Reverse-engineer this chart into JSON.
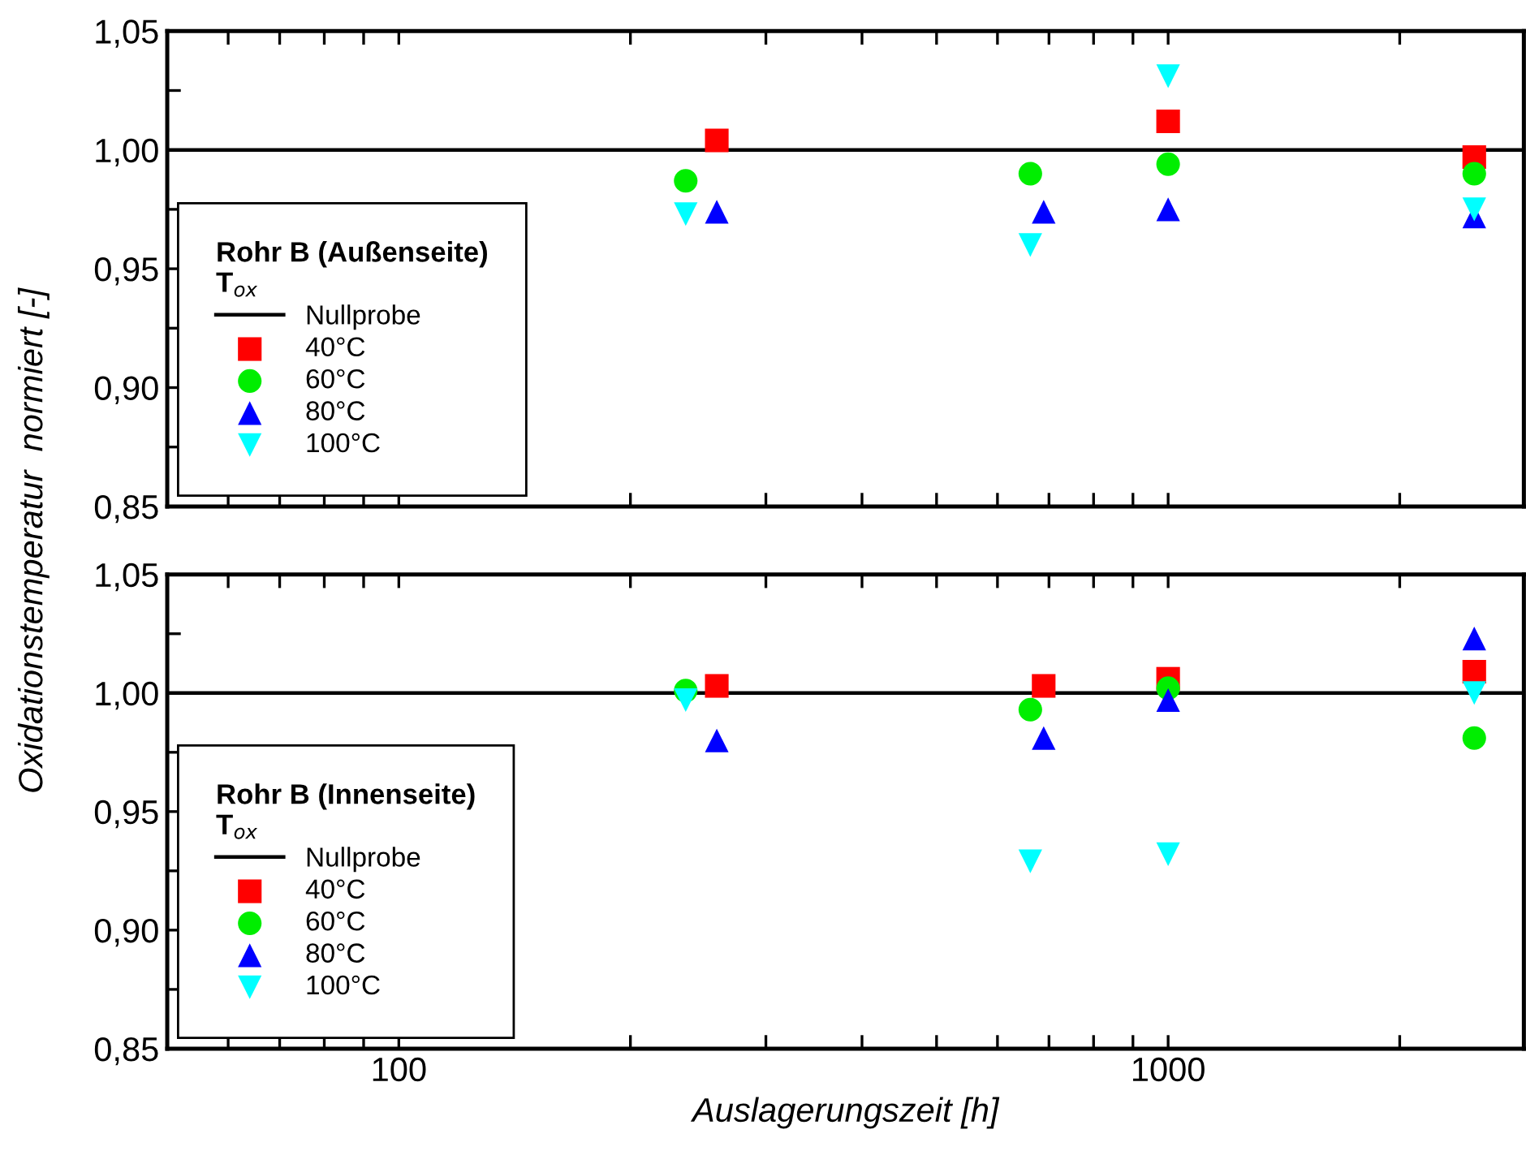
{
  "chart_data": [
    {
      "type": "scatter",
      "ylabel": "Oxidationstemperatur  normiert [-]",
      "legend_title": "Rohr B (Außenseite)\nT$_{ox}$",
      "legend": "bottom left",
      "log": "x",
      "grid": false,
      "tick_labels": "y",
      "xlim": [
        50,
        2900
      ],
      "xticks": [
        {
          "value": 60,
          "label": null
        },
        {
          "value": 70,
          "label": null
        },
        {
          "value": 80,
          "label": null
        },
        {
          "value": 90,
          "label": null
        },
        100,
        {
          "value": 200,
          "label": null
        },
        {
          "value": 300,
          "label": null
        },
        {
          "value": 400,
          "label": null
        },
        {
          "value": 500,
          "label": null
        },
        {
          "value": 600,
          "label": null
        },
        {
          "value": 700,
          "label": null
        },
        {
          "value": 800,
          "label": null
        },
        {
          "value": 900,
          "label": null
        },
        1000,
        {
          "value": 2000,
          "label": null
        }
      ],
      "ylim": [
        0.85,
        1.05
      ],
      "yticks": [
        {
          "value": 0.85,
          "label": "0,85"
        },
        {
          "value": 0.875,
          "label": null
        },
        {
          "value": 0.9,
          "label": "0,90"
        },
        {
          "value": 0.925,
          "label": null
        },
        {
          "value": 0.95,
          "label": "0,95"
        },
        {
          "value": 0.975,
          "label": null
        },
        {
          "value": 1.0,
          "label": "1,00"
        },
        {
          "value": 1.025,
          "label": null
        },
        {
          "value": 1.05,
          "label": "1,05"
        }
      ],
      "ref_lines": [
        {
          "axis": "y",
          "value": 1.0,
          "label": "Nullprobe",
          "color": "#000000",
          "line_style": "solid"
        }
      ],
      "series": [
        {
          "name": "40°C",
          "color": "#ff0000",
          "marker": "square",
          "x": [
            259,
            1000,
            2500
          ],
          "values": [
            1.004,
            1.012,
            0.997
          ]
        },
        {
          "name": "60°C",
          "color": "#00ee00",
          "marker": "circle",
          "x": [
            236,
            662,
            1000,
            2500
          ],
          "values": [
            0.987,
            0.99,
            0.994,
            0.99
          ]
        },
        {
          "name": "80°C",
          "color": "#0000ff",
          "marker": "triangle",
          "x": [
            259,
            689,
            1000,
            2500
          ],
          "values": [
            0.974,
            0.974,
            0.975,
            0.972
          ]
        },
        {
          "name": "100°C",
          "color": "#00ffff",
          "marker": "triangle_down",
          "x": [
            236,
            662,
            1000,
            2500
          ],
          "values": [
            0.973,
            0.96,
            1.031,
            0.975
          ]
        }
      ]
    },
    {
      "type": "scatter",
      "xlabel": "Auslagerungszeit [h]",
      "legend_title": "Rohr B (Innenseite)\nT$_{ox}$",
      "legend": "bottom left",
      "log": "x",
      "grid": false,
      "xlim": [
        50,
        2900
      ],
      "xticks": [
        {
          "value": 60,
          "label": null
        },
        {
          "value": 70,
          "label": null
        },
        {
          "value": 80,
          "label": null
        },
        {
          "value": 90,
          "label": null
        },
        100,
        {
          "value": 200,
          "label": null
        },
        {
          "value": 300,
          "label": null
        },
        {
          "value": 400,
          "label": null
        },
        {
          "value": 500,
          "label": null
        },
        {
          "value": 600,
          "label": null
        },
        {
          "value": 700,
          "label": null
        },
        {
          "value": 800,
          "label": null
        },
        {
          "value": 900,
          "label": null
        },
        1000,
        {
          "value": 2000,
          "label": null
        }
      ],
      "ylim": [
        0.85,
        1.05
      ],
      "yticks": [
        {
          "value": 0.85,
          "label": "0,85"
        },
        {
          "value": 0.875,
          "label": null
        },
        {
          "value": 0.9,
          "label": "0,90"
        },
        {
          "value": 0.925,
          "label": null
        },
        {
          "value": 0.95,
          "label": "0,95"
        },
        {
          "value": 0.975,
          "label": null
        },
        {
          "value": 1.0,
          "label": "1,00"
        },
        {
          "value": 1.025,
          "label": null
        },
        {
          "value": 1.05,
          "label": "1,05"
        }
      ],
      "ref_lines": [
        {
          "axis": "y",
          "value": 1.0,
          "label": "Nullprobe",
          "color": "#000000",
          "line_style": "solid"
        }
      ],
      "series": [
        {
          "name": "40°C",
          "color": "#ff0000",
          "marker": "square",
          "x": [
            259,
            689,
            1000,
            2500
          ],
          "values": [
            1.003,
            1.003,
            1.006,
            1.009
          ]
        },
        {
          "name": "60°C",
          "color": "#00ee00",
          "marker": "circle",
          "x": [
            236,
            662,
            1000,
            2500
          ],
          "values": [
            1.001,
            0.993,
            1.002,
            0.981
          ]
        },
        {
          "name": "80°C",
          "color": "#0000ff",
          "marker": "triangle",
          "x": [
            259,
            689,
            1000,
            2500
          ],
          "values": [
            0.98,
            0.981,
            0.997,
            1.023
          ]
        },
        {
          "name": "100°C",
          "color": "#00ffff",
          "marker": "triangle_down",
          "x": [
            236,
            662,
            1000,
            2500
          ],
          "values": [
            0.997,
            0.929,
            0.932,
            1.0
          ]
        }
      ]
    }
  ]
}
